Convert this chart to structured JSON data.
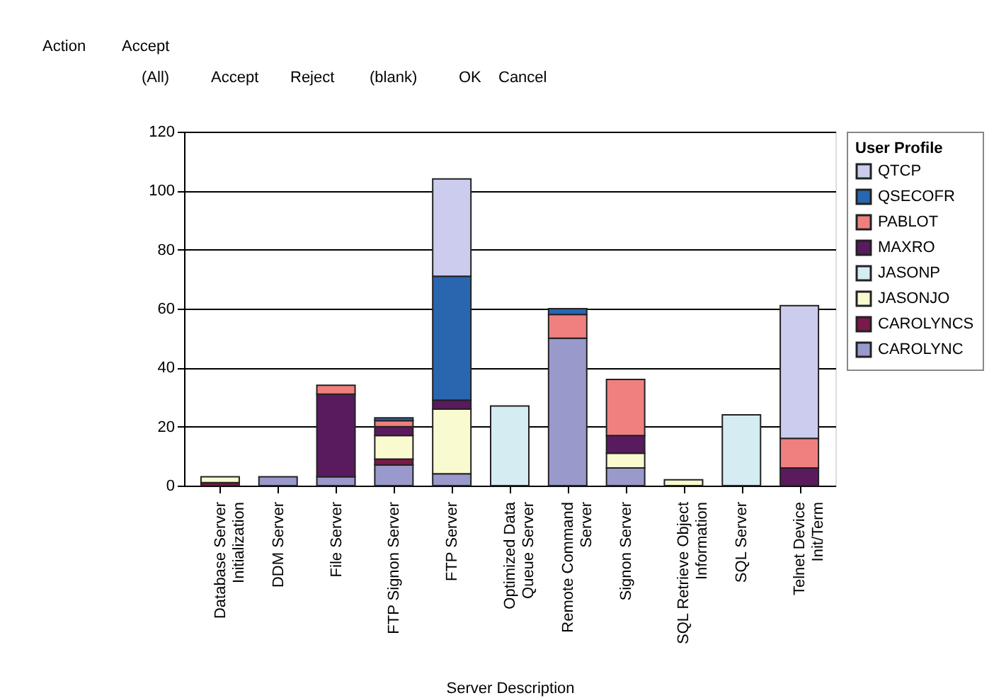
{
  "chart_data": {
    "type": "bar",
    "stacked": true,
    "xlabel": "Server Description",
    "legend_title": "User Profile",
    "legend": "right",
    "grid": "y",
    "categories": [
      "Database Server Initialization",
      "DDM Server",
      "File Server",
      "FTP Signon Server",
      "FTP Server",
      "Optimized Data Queue Server",
      "Remote Command Server",
      "Signon Server",
      "SQL Retrieve Object Information",
      "SQL Server",
      "Telnet Device Init/Term"
    ],
    "ylim": [
      0,
      120
    ],
    "yticks": [
      0,
      20,
      40,
      60,
      80,
      100,
      120
    ],
    "series": [
      {
        "name": "CAROLYNC",
        "color": "#9999cc",
        "values": [
          null,
          3,
          3,
          7,
          4,
          null,
          50,
          6,
          null,
          null,
          null
        ]
      },
      {
        "name": "CAROLYNCS",
        "color": "#7a1a4a",
        "values": [
          1,
          null,
          null,
          2,
          null,
          null,
          null,
          null,
          null,
          null,
          null
        ]
      },
      {
        "name": "JASONJO",
        "color": "#fafad0",
        "values": [
          2,
          null,
          null,
          8,
          22,
          null,
          null,
          5,
          2,
          null,
          null
        ]
      },
      {
        "name": "JASONP",
        "color": "#d4ecf2",
        "values": [
          null,
          null,
          null,
          null,
          null,
          27,
          null,
          null,
          null,
          24,
          null
        ]
      },
      {
        "name": "MAXRO",
        "color": "#5a1a5e",
        "values": [
          null,
          null,
          28,
          3,
          3,
          null,
          null,
          6,
          null,
          null,
          6
        ]
      },
      {
        "name": "PABLOT",
        "color": "#f08080",
        "values": [
          null,
          null,
          3,
          2,
          null,
          null,
          8,
          19,
          null,
          null,
          10
        ]
      },
      {
        "name": "QSECOFR",
        "color": "#2a66b0",
        "values": [
          null,
          null,
          null,
          1,
          42,
          null,
          2,
          null,
          null,
          null,
          null
        ]
      },
      {
        "name": "QTCP",
        "color": "#ccccee",
        "values": [
          null,
          null,
          null,
          null,
          33,
          null,
          null,
          null,
          null,
          null,
          45
        ]
      }
    ],
    "annotations": [
      "Action",
      "Accept",
      "(All)",
      "Accept",
      "Reject",
      "(blank)",
      "OK",
      "Cancel"
    ]
  }
}
